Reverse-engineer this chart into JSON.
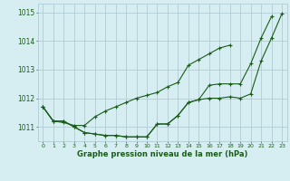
{
  "background_color": "#d6eef2",
  "grid_color": "#b0cdd4",
  "line_color": "#1a5c1a",
  "xlabel": "Graphe pression niveau de la mer (hPa)",
  "ylim": [
    1010.5,
    1015.3
  ],
  "xlim": [
    -0.5,
    23.5
  ],
  "yticks": [
    1011,
    1012,
    1013,
    1014,
    1015
  ],
  "xticks": [
    0,
    1,
    2,
    3,
    4,
    5,
    6,
    7,
    8,
    9,
    10,
    11,
    12,
    13,
    14,
    15,
    16,
    17,
    18,
    19,
    20,
    21,
    22,
    23
  ],
  "series": [
    [
      1011.7,
      1011.2,
      1011.2,
      1011.0,
      1010.8,
      1010.75,
      1010.7,
      1010.7,
      1010.65,
      1010.65,
      1010.65,
      1011.1,
      1011.1,
      1011.4,
      1011.85,
      1011.95,
      1012.0,
      1012.0,
      1012.05,
      1012.0,
      1012.15,
      1013.3,
      1014.1,
      1014.95
    ],
    [
      1011.7,
      1011.2,
      1011.2,
      1011.0,
      1010.8,
      1010.75,
      1010.7,
      1010.7,
      1010.65,
      1010.65,
      1010.65,
      1011.1,
      1011.1,
      1011.4,
      1011.85,
      1011.95,
      1012.45,
      1012.5,
      1012.5,
      1012.5,
      1013.2,
      1014.1,
      1014.85,
      null
    ],
    [
      1011.7,
      1011.2,
      1011.15,
      1011.05,
      1011.05,
      1011.35,
      1011.55,
      1011.7,
      1011.85,
      1012.0,
      1012.1,
      1012.2,
      1012.4,
      1012.55,
      1013.15,
      1013.35,
      1013.55,
      1013.75,
      1013.85,
      null,
      null,
      null,
      null,
      null
    ]
  ],
  "figsize": [
    3.2,
    2.0
  ],
  "dpi": 100
}
